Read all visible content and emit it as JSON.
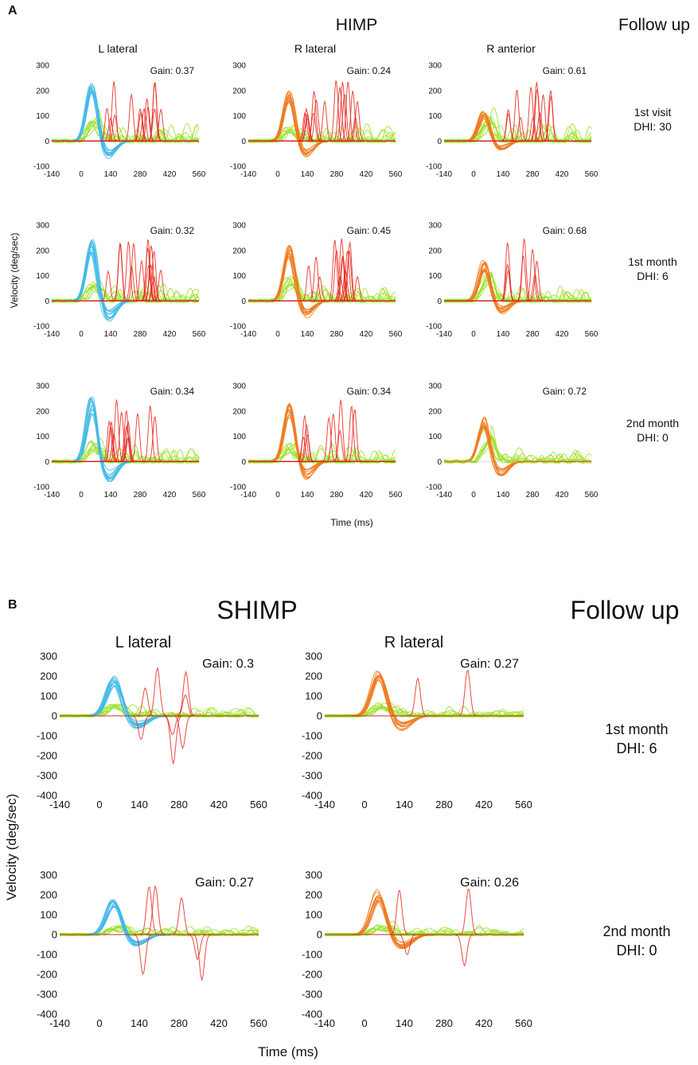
{
  "figure": {
    "panel_a": {
      "letter": "A",
      "title": "HIMP",
      "follow_up_label": "Follow up",
      "ylabel": "Velocity (deg/sec)",
      "xlabel": "Time (ms)",
      "columns": [
        "L lateral",
        "R lateral",
        "R anterior"
      ],
      "rows": [
        {
          "line1": "1st visit",
          "line2": "DHI: 30"
        },
        {
          "line1": "1st month",
          "line2": "DHI: 6"
        },
        {
          "line1": "2nd month",
          "line2": "DHI: 0"
        }
      ]
    },
    "panel_b": {
      "letter": "B",
      "title": "SHIMP",
      "follow_up_label": "Follow up",
      "ylabel": "Velocity (deg/sec)",
      "xlabel": "Time (ms)",
      "columns": [
        "L lateral",
        "R lateral"
      ],
      "rows": [
        {
          "line1": "1st month",
          "line2": "DHI: 6"
        },
        {
          "line1": "2nd month",
          "line2": "DHI: 0"
        }
      ]
    }
  },
  "colors": {
    "head_left": "#3fb8e8",
    "head_right": "#f07a1e",
    "eye": "#9be02a",
    "saccade": "#e8281e",
    "axis": "#333333"
  },
  "chart_data": [
    {
      "type": "line",
      "panel": "A",
      "row": 0,
      "col": 0,
      "title": "L lateral",
      "gain_label": "Gain: 0.37",
      "gain": 0.37,
      "head_color": "head_left",
      "xticks": [
        -140,
        0,
        140,
        280,
        420,
        560
      ],
      "yticks": [
        300,
        200,
        100,
        0,
        -100
      ],
      "xlim": [
        -140,
        560
      ],
      "ylim": [
        -100,
        300
      ],
      "series": [
        {
          "name": "head",
          "peak": 215,
          "peak_t": 50
        },
        {
          "name": "eye",
          "peak": 80,
          "peak_t": 60
        },
        {
          "name": "saccades",
          "count": 14
        }
      ]
    },
    {
      "type": "line",
      "panel": "A",
      "row": 0,
      "col": 1,
      "title": "R lateral",
      "gain_label": "Gain: 0.24",
      "gain": 0.24,
      "head_color": "head_right",
      "xticks": [
        -140,
        0,
        140,
        280,
        420,
        560
      ],
      "yticks": [
        300,
        200,
        100,
        0,
        -100
      ],
      "xlim": [
        -140,
        560
      ],
      "ylim": [
        -100,
        300
      ],
      "series": [
        {
          "name": "head",
          "peak": 185,
          "peak_t": 55
        },
        {
          "name": "eye",
          "peak": 50,
          "peak_t": 60
        },
        {
          "name": "saccades",
          "count": 16
        }
      ]
    },
    {
      "type": "line",
      "panel": "A",
      "row": 0,
      "col": 2,
      "title": "R anterior",
      "gain_label": "Gain: 0.61",
      "gain": 0.61,
      "head_color": "head_right",
      "xticks": [
        -140,
        0,
        140,
        280,
        420,
        560
      ],
      "yticks": [
        300,
        200,
        100,
        0,
        -100
      ],
      "xlim": [
        -140,
        560
      ],
      "ylim": [
        -100,
        300
      ],
      "series": [
        {
          "name": "head",
          "peak": 110,
          "peak_t": 50
        },
        {
          "name": "eye",
          "peak": 85,
          "peak_t": 70
        },
        {
          "name": "saccades",
          "count": 12
        }
      ]
    },
    {
      "type": "line",
      "panel": "A",
      "row": 1,
      "col": 0,
      "title": "",
      "gain_label": "Gain: 0.32",
      "gain": 0.32,
      "head_color": "head_left",
      "xticks": [
        -140,
        0,
        140,
        280,
        420,
        560
      ],
      "yticks": [
        300,
        200,
        100,
        0,
        -100
      ],
      "xlim": [
        -140,
        560
      ],
      "ylim": [
        -100,
        300
      ],
      "series": [
        {
          "name": "head",
          "peak": 240,
          "peak_t": 50
        },
        {
          "name": "eye",
          "peak": 60,
          "peak_t": 60
        },
        {
          "name": "saccades",
          "count": 16
        }
      ]
    },
    {
      "type": "line",
      "panel": "A",
      "row": 1,
      "col": 1,
      "title": "",
      "gain_label": "Gain: 0.45",
      "gain": 0.45,
      "head_color": "head_right",
      "xticks": [
        -140,
        0,
        140,
        280,
        420,
        560
      ],
      "yticks": [
        300,
        200,
        100,
        0,
        -100
      ],
      "xlim": [
        -140,
        560
      ],
      "ylim": [
        -100,
        300
      ],
      "series": [
        {
          "name": "head",
          "peak": 210,
          "peak_t": 55
        },
        {
          "name": "eye",
          "peak": 90,
          "peak_t": 60
        },
        {
          "name": "saccades",
          "count": 14
        }
      ]
    },
    {
      "type": "line",
      "panel": "A",
      "row": 1,
      "col": 2,
      "title": "",
      "gain_label": "Gain: 0.68",
      "gain": 0.68,
      "head_color": "head_right",
      "xticks": [
        -140,
        0,
        140,
        280,
        420,
        560
      ],
      "yticks": [
        300,
        200,
        100,
        0,
        -100
      ],
      "xlim": [
        -140,
        560
      ],
      "ylim": [
        -100,
        300
      ],
      "series": [
        {
          "name": "head",
          "peak": 150,
          "peak_t": 50
        },
        {
          "name": "eye",
          "peak": 100,
          "peak_t": 70
        },
        {
          "name": "saccades",
          "count": 8
        }
      ]
    },
    {
      "type": "line",
      "panel": "A",
      "row": 2,
      "col": 0,
      "title": "",
      "gain_label": "Gain: 0.34",
      "gain": 0.34,
      "head_color": "head_left",
      "xticks": [
        -140,
        0,
        140,
        280,
        420,
        560
      ],
      "yticks": [
        300,
        200,
        100,
        0,
        -100
      ],
      "xlim": [
        -140,
        560
      ],
      "ylim": [
        -100,
        300
      ],
      "series": [
        {
          "name": "head",
          "peak": 240,
          "peak_t": 50
        },
        {
          "name": "eye",
          "peak": 70,
          "peak_t": 60
        },
        {
          "name": "saccades",
          "count": 14
        }
      ]
    },
    {
      "type": "line",
      "panel": "A",
      "row": 2,
      "col": 1,
      "title": "",
      "gain_label": "Gain: 0.34",
      "gain": 0.34,
      "head_color": "head_right",
      "xticks": [
        -140,
        0,
        140,
        280,
        420,
        560
      ],
      "yticks": [
        300,
        200,
        100,
        0,
        -100
      ],
      "xlim": [
        -140,
        560
      ],
      "ylim": [
        -100,
        300
      ],
      "series": [
        {
          "name": "head",
          "peak": 220,
          "peak_t": 55
        },
        {
          "name": "eye",
          "peak": 60,
          "peak_t": 60
        },
        {
          "name": "saccades",
          "count": 10
        }
      ]
    },
    {
      "type": "line",
      "panel": "A",
      "row": 2,
      "col": 2,
      "title": "",
      "gain_label": "Gain: 0.72",
      "gain": 0.72,
      "head_color": "head_right",
      "xticks": [
        -140,
        0,
        140,
        280,
        420,
        560
      ],
      "yticks": [
        300,
        200,
        100,
        0,
        -100
      ],
      "xlim": [
        -140,
        560
      ],
      "ylim": [
        -100,
        300
      ],
      "series": [
        {
          "name": "head",
          "peak": 170,
          "peak_t": 50
        },
        {
          "name": "eye",
          "peak": 110,
          "peak_t": 70
        },
        {
          "name": "saccades",
          "count": 0
        }
      ]
    },
    {
      "type": "line",
      "panel": "B",
      "row": 0,
      "col": 0,
      "title": "L lateral",
      "gain_label": "Gain: 0.3",
      "gain": 0.3,
      "head_color": "head_left",
      "xticks": [
        -140,
        0,
        140,
        280,
        420,
        560
      ],
      "yticks": [
        300,
        200,
        100,
        0,
        -100,
        -200,
        -300,
        -400
      ],
      "xlim": [
        -140,
        560
      ],
      "ylim": [
        -400,
        300
      ],
      "series": [
        {
          "name": "head",
          "peak": 190,
          "peak_t": 50
        },
        {
          "name": "eye",
          "peak": 50,
          "peak_t": 60
        },
        {
          "name": "saccades",
          "count": 8
        }
      ]
    },
    {
      "type": "line",
      "panel": "B",
      "row": 0,
      "col": 1,
      "title": "R lateral",
      "gain_label": "Gain: 0.27",
      "gain": 0.27,
      "head_color": "head_right",
      "xticks": [
        -140,
        0,
        140,
        280,
        420,
        560
      ],
      "yticks": [
        300,
        200,
        100,
        0,
        -100,
        -200,
        -300,
        -400
      ],
      "xlim": [
        -140,
        560
      ],
      "ylim": [
        -400,
        300
      ],
      "series": [
        {
          "name": "head",
          "peak": 220,
          "peak_t": 50
        },
        {
          "name": "eye",
          "peak": 50,
          "peak_t": 60
        },
        {
          "name": "saccades",
          "count": 2
        }
      ]
    },
    {
      "type": "line",
      "panel": "B",
      "row": 1,
      "col": 0,
      "title": "",
      "gain_label": "Gain: 0.27",
      "gain": 0.27,
      "head_color": "head_left",
      "xticks": [
        -140,
        0,
        140,
        280,
        420,
        560
      ],
      "yticks": [
        300,
        200,
        100,
        0,
        -100,
        -200,
        -300,
        -400
      ],
      "xlim": [
        -140,
        560
      ],
      "ylim": [
        -400,
        300
      ],
      "series": [
        {
          "name": "head",
          "peak": 170,
          "peak_t": 50
        },
        {
          "name": "eye",
          "peak": 40,
          "peak_t": 60
        },
        {
          "name": "saccades",
          "count": 6
        }
      ]
    },
    {
      "type": "line",
      "panel": "B",
      "row": 1,
      "col": 1,
      "title": "",
      "gain_label": "Gain: 0.26",
      "gain": 0.26,
      "head_color": "head_right",
      "xticks": [
        -140,
        0,
        140,
        280,
        420,
        560
      ],
      "yticks": [
        300,
        200,
        100,
        0,
        -100,
        -200,
        -300,
        -400
      ],
      "xlim": [
        -140,
        560
      ],
      "ylim": [
        -400,
        300
      ],
      "series": [
        {
          "name": "head",
          "peak": 210,
          "peak_t": 50
        },
        {
          "name": "eye",
          "peak": 40,
          "peak_t": 60
        },
        {
          "name": "saccades",
          "count": 4
        }
      ]
    }
  ]
}
